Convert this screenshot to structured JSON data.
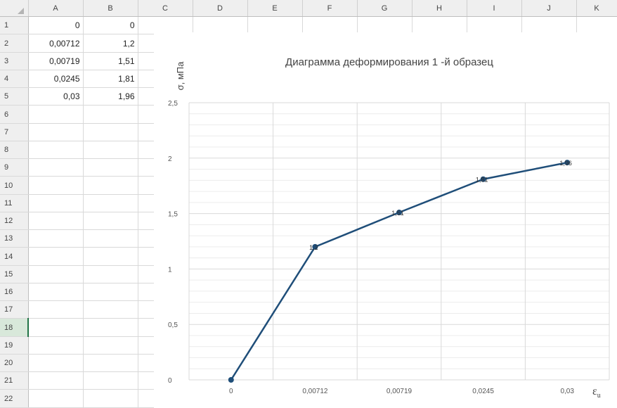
{
  "columns": [
    "A",
    "B",
    "C",
    "D",
    "E",
    "F",
    "G",
    "H",
    "I",
    "J",
    "K"
  ],
  "rows": [
    {
      "n": "1",
      "a": "0",
      "b": "0"
    },
    {
      "n": "2",
      "a": "0,00712",
      "b": "1,2"
    },
    {
      "n": "3",
      "a": "0,00719",
      "b": "1,51"
    },
    {
      "n": "4",
      "a": "0,0245",
      "b": "1,81"
    },
    {
      "n": "5",
      "a": "0,03",
      "b": "1,96"
    },
    {
      "n": "6",
      "a": "",
      "b": ""
    },
    {
      "n": "7",
      "a": "",
      "b": ""
    },
    {
      "n": "8",
      "a": "",
      "b": ""
    },
    {
      "n": "9",
      "a": "",
      "b": ""
    },
    {
      "n": "10",
      "a": "",
      "b": ""
    },
    {
      "n": "11",
      "a": "",
      "b": ""
    },
    {
      "n": "12",
      "a": "",
      "b": ""
    },
    {
      "n": "13",
      "a": "",
      "b": ""
    },
    {
      "n": "14",
      "a": "",
      "b": ""
    },
    {
      "n": "15",
      "a": "",
      "b": ""
    },
    {
      "n": "16",
      "a": "",
      "b": ""
    },
    {
      "n": "17",
      "a": "",
      "b": ""
    },
    {
      "n": "18",
      "a": "",
      "b": ""
    },
    {
      "n": "19",
      "a": "",
      "b": ""
    },
    {
      "n": "20",
      "a": "",
      "b": ""
    },
    {
      "n": "21",
      "a": "",
      "b": ""
    },
    {
      "n": "22",
      "a": "",
      "b": ""
    }
  ],
  "selected_row": "18",
  "chart_data": {
    "type": "line",
    "title": "Диаграмма деформирования 1 -й образец",
    "xlabel": "ε",
    "xlabel_sub": "u",
    "ylabel": "σ, мПа",
    "categories": [
      "0",
      "0,00712",
      "0,00719",
      "0,0245",
      "0,03"
    ],
    "series": [
      {
        "values": [
          0,
          1.2,
          1.51,
          1.81,
          1.96
        ],
        "labels": [
          "0",
          "1,2",
          "1,51",
          "1,81",
          "1,96"
        ]
      }
    ],
    "ylim": [
      0,
      2.5
    ],
    "yticks": [
      0,
      0.5,
      1,
      1.5,
      2,
      2.5
    ],
    "ytick_labels": [
      "0",
      "0,5",
      "1",
      "1,5",
      "2",
      "2,5"
    ],
    "grid": true,
    "color": "#1f4e79"
  }
}
